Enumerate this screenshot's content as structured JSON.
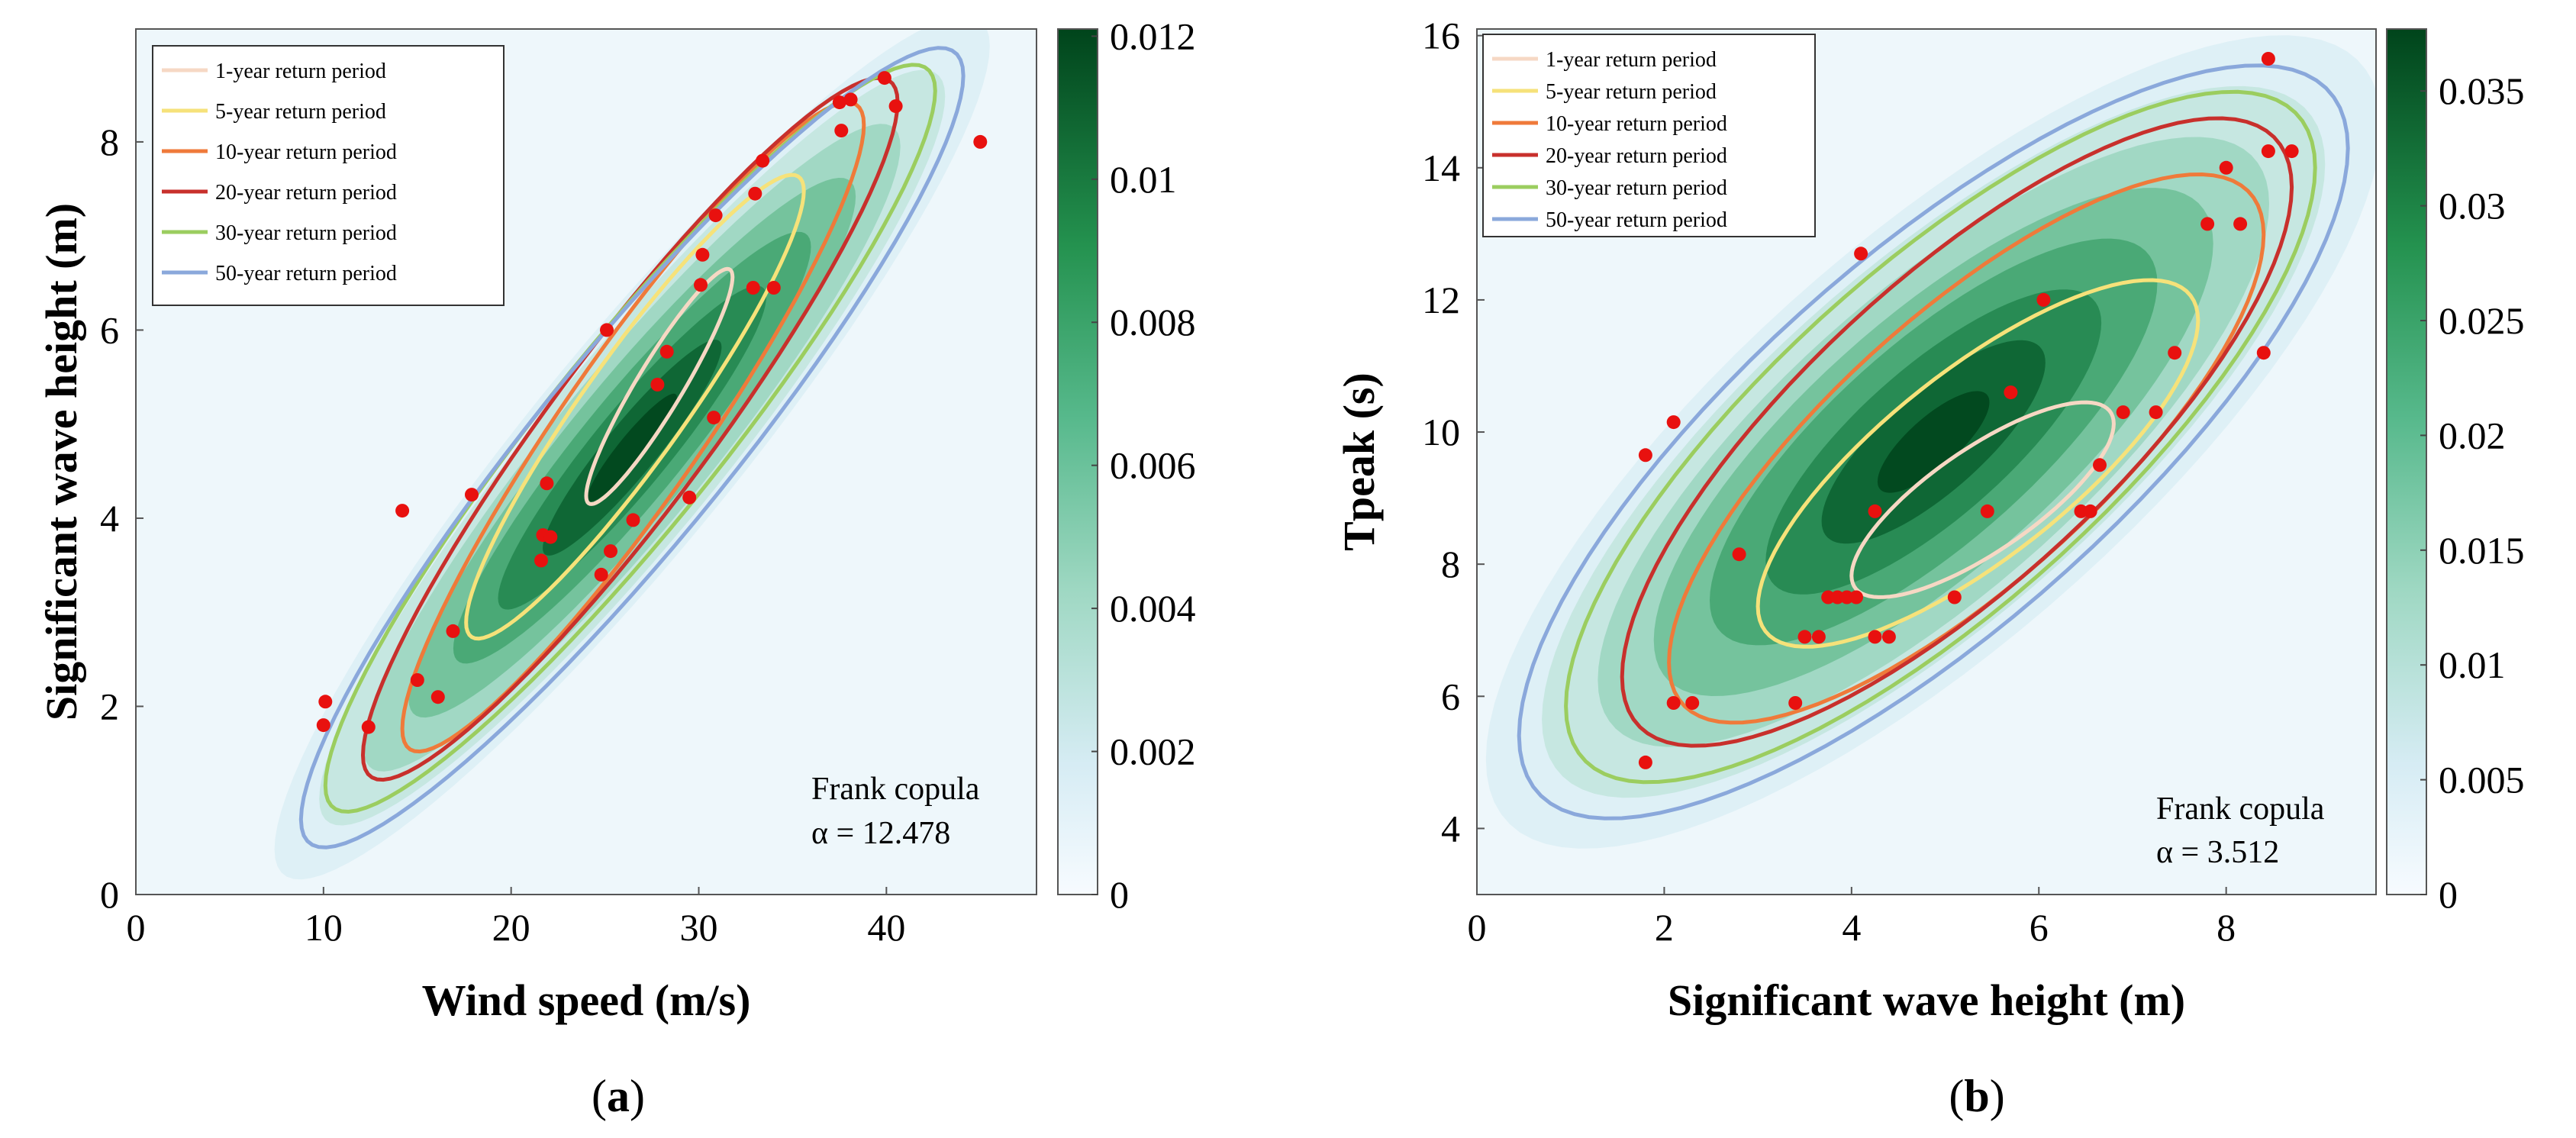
{
  "chart_data": [
    {
      "id": "a",
      "type": "contour",
      "caption_open": "(",
      "caption_letter": "a",
      "caption_close": ")",
      "xlabel": "Wind speed (m/s)",
      "ylabel": "Significant wave height (m)",
      "xlim": [
        0,
        48
      ],
      "ylim": [
        0,
        9.2
      ],
      "xticks": [
        0,
        10,
        20,
        30,
        40
      ],
      "yticks": [
        0,
        2,
        4,
        6,
        8
      ],
      "colorbar": {
        "min": 0,
        "max": 0.0121,
        "ticks": [
          0,
          0.002,
          0.004,
          0.006,
          0.008,
          0.01,
          0.012
        ],
        "tick_labels": [
          "0",
          "0.002",
          "0.004",
          "0.006",
          "0.008",
          "0.01",
          "0.012"
        ]
      },
      "annotation": [
        "Frank copula",
        "α = 12.478"
      ],
      "contours": [
        {
          "name": "1-year return period",
          "color": "#f6d8c4",
          "x": [
            24,
            31.8
          ],
          "y": [
            4.15,
            6.65
          ]
        },
        {
          "name": "5-year return period",
          "color": "#f6e27a",
          "x": [
            17.6,
            35.6
          ],
          "y": [
            2.72,
            7.65
          ]
        },
        {
          "name": "10-year return period",
          "color": "#ef7a3a",
          "x": [
            14.2,
            38.8
          ],
          "y": [
            1.52,
            8.42
          ]
        },
        {
          "name": "20-year return period",
          "color": "#c8302c",
          "x": [
            12.1,
            40.6
          ],
          "y": [
            1.22,
            8.68
          ]
        },
        {
          "name": "30-year return period",
          "color": "#9bcd5f",
          "x": [
            10.1,
            42.6
          ],
          "y": [
            0.88,
            8.82
          ]
        },
        {
          "name": "50-year return period",
          "color": "#8aa8db",
          "x": [
            8.8,
            44.1
          ],
          "y": [
            0.5,
            9.0
          ]
        }
      ],
      "points": [
        [
          10.0,
          1.8
        ],
        [
          10.1,
          2.05
        ],
        [
          12.4,
          1.78
        ],
        [
          15.0,
          2.28
        ],
        [
          16.1,
          2.1
        ],
        [
          16.9,
          2.8
        ],
        [
          14.2,
          4.08
        ],
        [
          17.9,
          4.25
        ],
        [
          21.6,
          3.55
        ],
        [
          21.7,
          3.82
        ],
        [
          22.1,
          3.8
        ],
        [
          21.9,
          4.37
        ],
        [
          24.8,
          3.4
        ],
        [
          25.3,
          3.65
        ],
        [
          26.5,
          3.98
        ],
        [
          29.5,
          4.22
        ],
        [
          25.1,
          6.0
        ],
        [
          27.8,
          5.42
        ],
        [
          28.3,
          5.77
        ],
        [
          30.8,
          5.07
        ],
        [
          30.1,
          6.48
        ],
        [
          30.2,
          6.8
        ],
        [
          30.9,
          7.22
        ],
        [
          33.0,
          7.45
        ],
        [
          33.4,
          7.8
        ],
        [
          32.9,
          6.45
        ],
        [
          34.0,
          6.45
        ],
        [
          37.6,
          8.12
        ],
        [
          37.5,
          8.42
        ],
        [
          38.1,
          8.45
        ],
        [
          40.5,
          8.38
        ],
        [
          39.9,
          8.68
        ],
        [
          45.0,
          8.0
        ]
      ]
    },
    {
      "id": "b",
      "type": "contour",
      "caption_open": "(",
      "caption_letter": "b",
      "caption_close": ")",
      "xlabel": "Significant wave height (m)",
      "ylabel": "Tpeak (s)",
      "xlim": [
        0,
        9.6
      ],
      "ylim": [
        3,
        16.1
      ],
      "xticks": [
        0,
        2,
        4,
        6,
        8
      ],
      "yticks": [
        4,
        6,
        8,
        10,
        12,
        14,
        16
      ],
      "colorbar": {
        "min": 0,
        "max": 0.0377,
        "ticks": [
          0,
          0.005,
          0.01,
          0.015,
          0.02,
          0.025,
          0.03,
          0.035
        ],
        "tick_labels": [
          "0",
          "0.005",
          "0.01",
          "0.015",
          "0.02",
          "0.025",
          "0.03",
          "0.035"
        ]
      },
      "annotation": [
        "Frank copula",
        "α = 3.512"
      ],
      "contours": [
        {
          "name": "1-year return period",
          "color": "#f6d8c4",
          "x": [
            4.0,
            6.8
          ],
          "y": [
            7.5,
            10.45
          ]
        },
        {
          "name": "5-year return period",
          "color": "#f6e27a",
          "x": [
            3.0,
            7.7
          ],
          "y": [
            6.75,
            12.3
          ]
        },
        {
          "name": "10-year return period",
          "color": "#ef7a3a",
          "x": [
            2.05,
            8.4
          ],
          "y": [
            5.6,
            13.9
          ]
        },
        {
          "name": "20-year return period",
          "color": "#c8302c",
          "x": [
            1.55,
            8.7
          ],
          "y": [
            5.25,
            14.75
          ]
        },
        {
          "name": "30-year return period",
          "color": "#9bcd5f",
          "x": [
            0.95,
            8.95
          ],
          "y": [
            4.7,
            15.15
          ]
        },
        {
          "name": "50-year return period",
          "color": "#8aa8db",
          "x": [
            0.45,
            9.3
          ],
          "y": [
            4.15,
            15.55
          ]
        }
      ],
      "points": [
        [
          1.8,
          9.65
        ],
        [
          2.1,
          10.15
        ],
        [
          1.8,
          5.0
        ],
        [
          2.1,
          5.9
        ],
        [
          2.3,
          5.9
        ],
        [
          2.8,
          8.15
        ],
        [
          3.4,
          5.9
        ],
        [
          3.5,
          6.9
        ],
        [
          3.65,
          6.9
        ],
        [
          3.75,
          7.5
        ],
        [
          3.85,
          7.5
        ],
        [
          3.95,
          7.5
        ],
        [
          4.05,
          7.5
        ],
        [
          4.25,
          6.9
        ],
        [
          4.4,
          6.9
        ],
        [
          4.25,
          8.8
        ],
        [
          4.1,
          12.7
        ],
        [
          5.1,
          7.5
        ],
        [
          5.45,
          8.8
        ],
        [
          5.7,
          10.6
        ],
        [
          6.05,
          12.0
        ],
        [
          6.45,
          8.8
        ],
        [
          6.55,
          8.8
        ],
        [
          6.65,
          9.5
        ],
        [
          6.9,
          10.3
        ],
        [
          7.25,
          10.3
        ],
        [
          7.45,
          11.2
        ],
        [
          7.8,
          13.15
        ],
        [
          8.0,
          14.0
        ],
        [
          8.15,
          13.15
        ],
        [
          8.4,
          11.2
        ],
        [
          8.45,
          14.25
        ],
        [
          8.7,
          14.25
        ],
        [
          8.45,
          15.65
        ]
      ]
    }
  ]
}
